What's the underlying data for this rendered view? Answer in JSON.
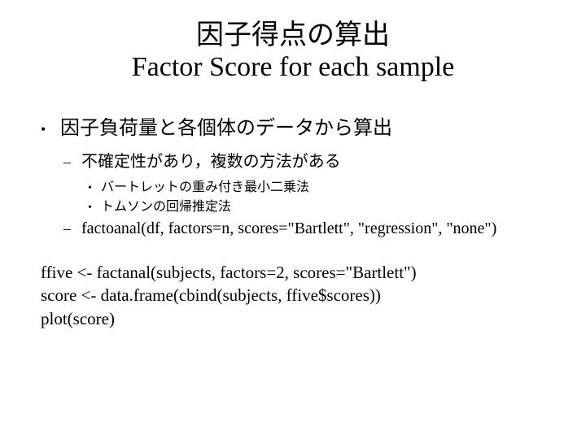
{
  "title": {
    "jp": "因子得点の算出",
    "en": "Factor Score for each sample"
  },
  "bullets": {
    "lvl1": [
      {
        "text": "因子負荷量と各個体のデータから算出",
        "lvl2": [
          {
            "text": "不確定性があり，複数の方法がある",
            "lang": "jp",
            "lvl3": [
              "バートレットの重み付き最小二乗法",
              "トムソンの回帰推定法"
            ]
          },
          {
            "text": "factoanal(df, factors=n, scores=\"Bartlett\", \"regression\", \"none\")",
            "lang": "en"
          }
        ]
      }
    ]
  },
  "code": {
    "line1": "ffive <-  factanal(subjects, factors=2, scores=\"Bartlett\")",
    "line2": "score <- data.frame(cbind(subjects, ffive$scores))",
    "line3": "plot(score)"
  },
  "colors": {
    "background": "#ffffff",
    "text": "#000000"
  },
  "fonts": {
    "title_size": 34,
    "lvl1_size": 24,
    "lvl2_size": 20,
    "lvl3_size": 16,
    "code_size": 21
  }
}
